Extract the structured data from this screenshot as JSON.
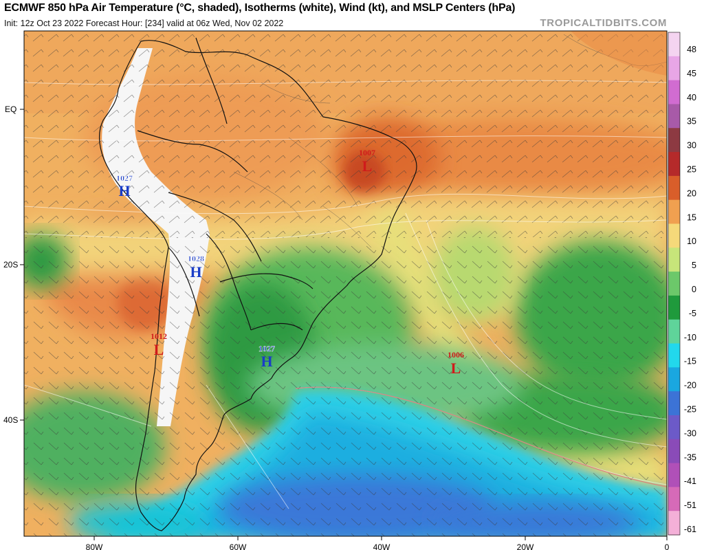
{
  "header": {
    "title": "ECMWF 850 hPa Air Temperature (°C, shaded), Isotherms (white), Wind (kt), and MSLP Centers (hPa)",
    "subtitle": "Init: 12z Oct 23 2022   Forecast Hour: [234]   valid at 06z Wed, Nov 02 2022",
    "credit": "TROPICALTIDBITS.COM"
  },
  "axes": {
    "lat_labels": [
      "EQ",
      "20S",
      "40S"
    ],
    "lon_labels": [
      "80W",
      "60W",
      "40W",
      "20W",
      "0"
    ]
  },
  "colorbar": {
    "ticks": [
      "48",
      "45",
      "40",
      "35",
      "30",
      "25",
      "20",
      "15",
      "10",
      "5",
      "0",
      "-5",
      "-10",
      "-15",
      "-20",
      "-25",
      "-30",
      "-35",
      "-41",
      "-51",
      "-61"
    ],
    "colors": [
      "#f4d4f0",
      "#e8a6e6",
      "#d16cd1",
      "#a85aa8",
      "#8d3a42",
      "#b52a2a",
      "#d95e2a",
      "#f0a050",
      "#f5d97a",
      "#c7e57a",
      "#6cc86a",
      "#1f9a3c",
      "#5fd49a",
      "#22d8ec",
      "#1aa7e0",
      "#3c73d6",
      "#6c5ac8",
      "#8a4bb8",
      "#b050b8",
      "#d66ab8",
      "#f4b0d8"
    ]
  },
  "pressure_centers": [
    {
      "type": "H",
      "value": "1027",
      "color": "#1a3dc8"
    },
    {
      "type": "H",
      "value": "1028",
      "color": "#1a3dc8"
    },
    {
      "type": "H",
      "value": "1027",
      "color": "#1a3dc8"
    },
    {
      "type": "L",
      "value": "1007",
      "color": "#d01b1b"
    },
    {
      "type": "L",
      "value": "1012",
      "color": "#d01b1b"
    },
    {
      "type": "L",
      "value": "1006",
      "color": "#d01b1b"
    }
  ]
}
